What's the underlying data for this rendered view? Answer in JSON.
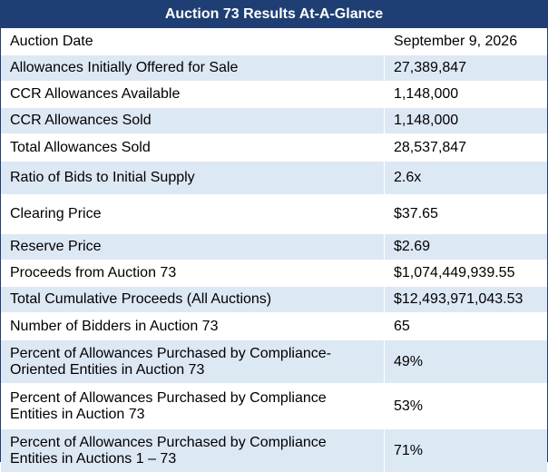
{
  "table": {
    "title": "Auction 73 Results At-A-Glance",
    "rows": [
      {
        "label": "Auction Date",
        "value": "September 9, 2026",
        "shaded": false
      },
      {
        "label": "Allowances Initially Offered for Sale",
        "value": "27,389,847",
        "shaded": true
      },
      {
        "label": "CCR Allowances Available",
        "value": "1,148,000",
        "shaded": false
      },
      {
        "label": "CCR Allowances Sold",
        "value": "1,148,000",
        "shaded": true
      },
      {
        "label": "Total Allowances Sold",
        "value": "28,537,847",
        "shaded": false
      },
      {
        "label": "Ratio of Bids to Initial Supply",
        "value": "2.6x",
        "shaded": true
      },
      {
        "label": "Clearing Price",
        "value": "$37.65",
        "shaded": false
      },
      {
        "label": "Reserve Price",
        "value": "$2.69",
        "shaded": true
      },
      {
        "label": "Proceeds from Auction 73",
        "value": "$1,074,449,939.55",
        "shaded": false
      },
      {
        "label": "Total Cumulative Proceeds (All Auctions)",
        "value": "$12,493,971,043.53",
        "shaded": true
      },
      {
        "label": "Number of Bidders in Auction 73",
        "value": "65",
        "shaded": false
      },
      {
        "label": "Percent of Allowances Purchased by Compliance-\nOriented Entities in Auction 73",
        "value": "49%",
        "shaded": true
      },
      {
        "label": "Percent of Allowances Purchased by Compliance\nEntities in Auction 73",
        "value": "53%",
        "shaded": false
      },
      {
        "label": "Percent of Allowances Purchased by Compliance\nEntities in Auctions 1 – 73",
        "value": "71%",
        "shaded": true
      }
    ]
  },
  "colors": {
    "header_bg": "#1f3f74",
    "row_shade": "#dde8f5"
  }
}
